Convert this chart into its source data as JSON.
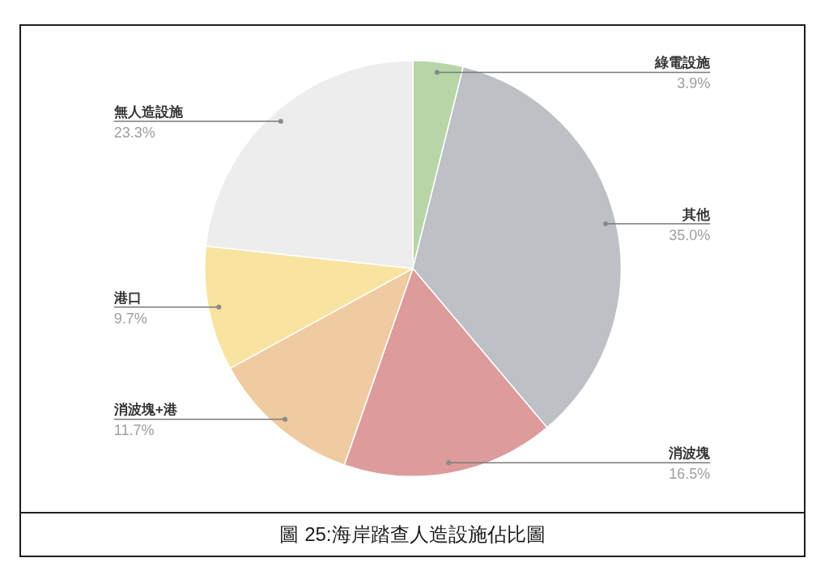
{
  "chart_data": {
    "type": "pie",
    "title": "圖 25:海岸踏查人造設施佔比圖",
    "categories": [
      "綠電設施",
      "其他",
      "消波塊",
      "消波塊+港",
      "港口",
      "無人造設施"
    ],
    "values": [
      3.9,
      35.0,
      16.5,
      11.7,
      9.7,
      23.3
    ],
    "value_labels": [
      "3.9%",
      "35.0%",
      "16.5%",
      "11.7%",
      "9.7%",
      "23.3%"
    ],
    "colors": [
      "#b8d5a7",
      "#bdc0c5",
      "#dd9b9b",
      "#f0caa0",
      "#f8e3a0",
      "#ededed"
    ],
    "legend": false
  }
}
